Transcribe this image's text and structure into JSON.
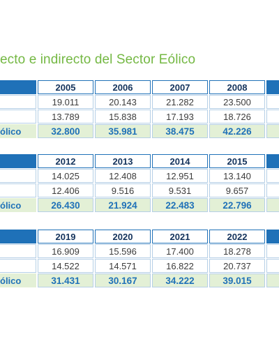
{
  "title": "ecto e indirecto del Sector Eólico",
  "colors": {
    "title_green": "#74b843",
    "header_blue": "#1f71b8",
    "total_text": "#1f71b8",
    "total_bg": "#e3f0d6"
  },
  "tables": [
    {
      "years": [
        "2005",
        "2006",
        "2007",
        "2008"
      ],
      "row1": [
        "19.011",
        "20.143",
        "21.282",
        "23.500"
      ],
      "row2": [
        "13.789",
        "15.838",
        "17.193",
        "18.726"
      ],
      "total_label": "ólico",
      "totals": [
        "32.800",
        "35.981",
        "38.475",
        "42.226"
      ]
    },
    {
      "years": [
        "2012",
        "2013",
        "2014",
        "2015"
      ],
      "row1": [
        "14.025",
        "12.408",
        "12.951",
        "13.140"
      ],
      "row2": [
        "12.406",
        "9.516",
        "9.531",
        "9.657"
      ],
      "total_label": "ólico",
      "totals": [
        "26.430",
        "21.924",
        "22.483",
        "22.796"
      ]
    },
    {
      "years": [
        "2019",
        "2020",
        "2021",
        "2022"
      ],
      "row1": [
        "16.909",
        "15.596",
        "17.400",
        "18.278"
      ],
      "row2": [
        "14.522",
        "14.571",
        "16.822",
        "20.737"
      ],
      "total_label": "ólico",
      "totals": [
        "31.431",
        "30.167",
        "34.222",
        "39.015"
      ]
    }
  ]
}
